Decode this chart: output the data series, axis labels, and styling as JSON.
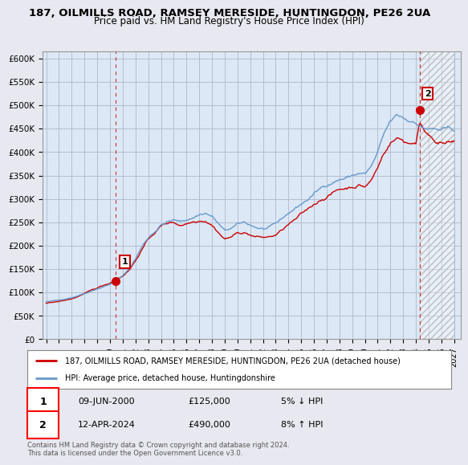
{
  "title_line1": "187, OILMILLS ROAD, RAMSEY MERESIDE, HUNTINGDON, PE26 2UA",
  "title_line2": "Price paid vs. HM Land Registry's House Price Index (HPI)",
  "ylabel_ticks": [
    "£0",
    "£50K",
    "£100K",
    "£150K",
    "£200K",
    "£250K",
    "£300K",
    "£350K",
    "£400K",
    "£450K",
    "£500K",
    "£550K",
    "£600K"
  ],
  "ytick_values": [
    0,
    50000,
    100000,
    150000,
    200000,
    250000,
    300000,
    350000,
    400000,
    450000,
    500000,
    550000,
    600000
  ],
  "ylim": [
    0,
    615000
  ],
  "xlim_start": 1994.7,
  "xlim_end": 2027.5,
  "sale1_x": 2000.44,
  "sale1_y": 125000,
  "sale2_x": 2024.28,
  "sale2_y": 490000,
  "sale1_label": "1",
  "sale2_label": "2",
  "hpi_color": "#6699cc",
  "sale_color": "#cc0000",
  "background_color": "#e8e8f0",
  "plot_bg_color": "#dce8f5",
  "grid_color": "#b0b8cc",
  "legend_label1": "187, OILMILLS ROAD, RAMSEY MERESIDE, HUNTINGDON, PE26 2UA (detached house)",
  "legend_label2": "HPI: Average price, detached house, Huntingdonshire",
  "annotation1_date": "09-JUN-2000",
  "annotation1_price": "£125,000",
  "annotation1_hpi": "5% ↓ HPI",
  "annotation2_date": "12-APR-2024",
  "annotation2_price": "£490,000",
  "annotation2_hpi": "8% ↑ HPI",
  "footer": "Contains HM Land Registry data © Crown copyright and database right 2024.\nThis data is licensed under the Open Government Licence v3.0."
}
